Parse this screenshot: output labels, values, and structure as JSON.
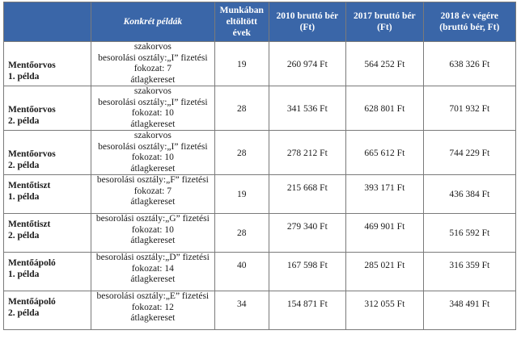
{
  "headers": [
    "",
    "Konkrét példák",
    "Munkában eltöltött évek",
    "2010 bruttó bér (Ft)",
    "2017 bruttó bér (Ft)",
    "2018 év végére (bruttó bér, Ft)"
  ],
  "rows": [
    {
      "name": [
        "Mentőorvos",
        "1. példa"
      ],
      "desc": [
        "szakorvos",
        "besorolási osztály:„I” fizetési",
        "fokozat: 7",
        "átlagkereset"
      ],
      "years": "19",
      "s2010": "260 974 Ft",
      "s2017": "564 252 Ft",
      "s2018": "638 326 Ft"
    },
    {
      "name": [
        "Mentőorvos",
        "2. példa"
      ],
      "desc": [
        "szakorvos",
        "besorolási osztály:„I” fizetési",
        "fokozat: 10",
        "átlagkereset"
      ],
      "years": "28",
      "s2010": "341 536 Ft",
      "s2017": "628 801 Ft",
      "s2018": "701 932 Ft"
    },
    {
      "name": [
        "Mentőorvos",
        "2. példa"
      ],
      "desc": [
        "szakorvos",
        "besorolási osztály:„I” fizetési",
        "fokozat: 10",
        "átlagkereset"
      ],
      "years": "28",
      "s2010": "278 212 Ft",
      "s2017": "665 612 Ft",
      "s2018": "744 229 Ft"
    },
    {
      "name": [
        "Mentőtiszt",
        "1. példa"
      ],
      "desc": [
        "besorolási osztály:„F” fizetési",
        "fokozat: 7",
        "átlagkereset"
      ],
      "years": "19",
      "s2010": "215 668 Ft",
      "s2017": "393 171 Ft",
      "s2018": "436 384 Ft"
    },
    {
      "name": [
        "Mentőtiszt",
        "2. példa"
      ],
      "desc": [
        "besorolási osztály:„G” fizetési",
        "fokozat: 10",
        "átlagkereset"
      ],
      "years": "28",
      "s2010": "279 340 Ft",
      "s2017": "469 901 Ft",
      "s2018": "516 592 Ft"
    },
    {
      "name": [
        "Mentőápoló",
        "1. példa"
      ],
      "desc": [
        "besorolási osztály:„D” fizetési",
        "fokozat: 14",
        "átlagkereset"
      ],
      "years": "40",
      "s2010": "167 598 Ft",
      "s2017": "285 021 Ft",
      "s2018": "316 359 Ft"
    },
    {
      "name": [
        "Mentőápoló",
        "2. példa"
      ],
      "desc": [
        "besorolási osztály:„E” fizetési",
        "fokozat: 12",
        "átlagkereset"
      ],
      "years": "34",
      "s2010": "154 871 Ft",
      "s2017": "312 055 Ft",
      "s2018": "348 491 Ft"
    }
  ]
}
